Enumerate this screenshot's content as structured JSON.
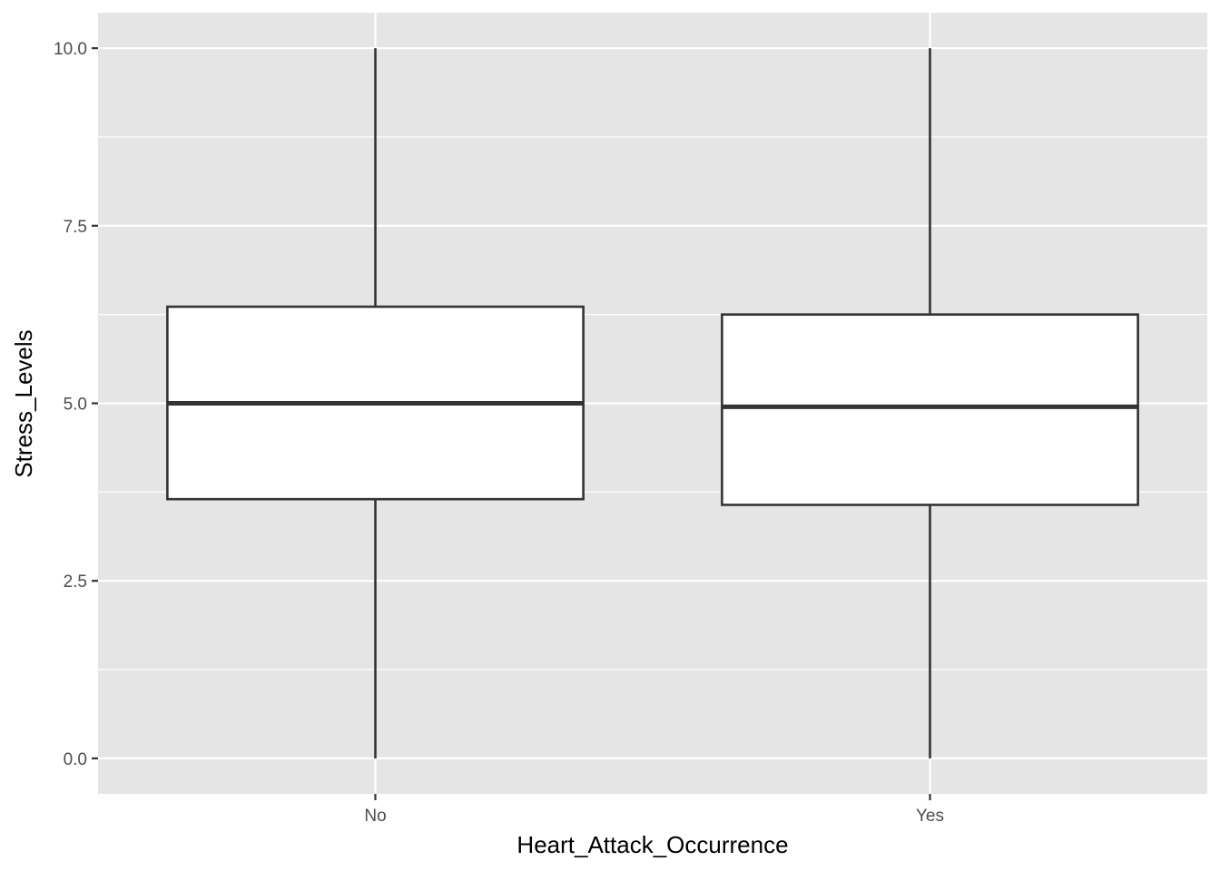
{
  "chart_data": {
    "type": "boxplot",
    "categories": [
      "No",
      "Yes"
    ],
    "boxes": [
      {
        "category": "No",
        "min": 0.0,
        "q1": 3.65,
        "median": 5.0,
        "q3": 6.36,
        "max": 10.0
      },
      {
        "category": "Yes",
        "min": 0.0,
        "q1": 3.57,
        "median": 4.95,
        "q3": 6.25,
        "max": 10.0
      }
    ],
    "xlabel": "Heart_Attack_Occurrence",
    "ylabel": "Stress_Levels",
    "yticks": [
      0.0,
      2.5,
      5.0,
      7.5,
      10.0
    ],
    "ytick_labels": [
      "0.0",
      "2.5",
      "5.0",
      "7.5",
      "10.0"
    ],
    "ylim": [
      -0.5,
      10.5
    ],
    "grid": true,
    "colors": {
      "panel": "#e5e5e5",
      "box_fill": "#ffffff",
      "line": "#333333"
    }
  }
}
